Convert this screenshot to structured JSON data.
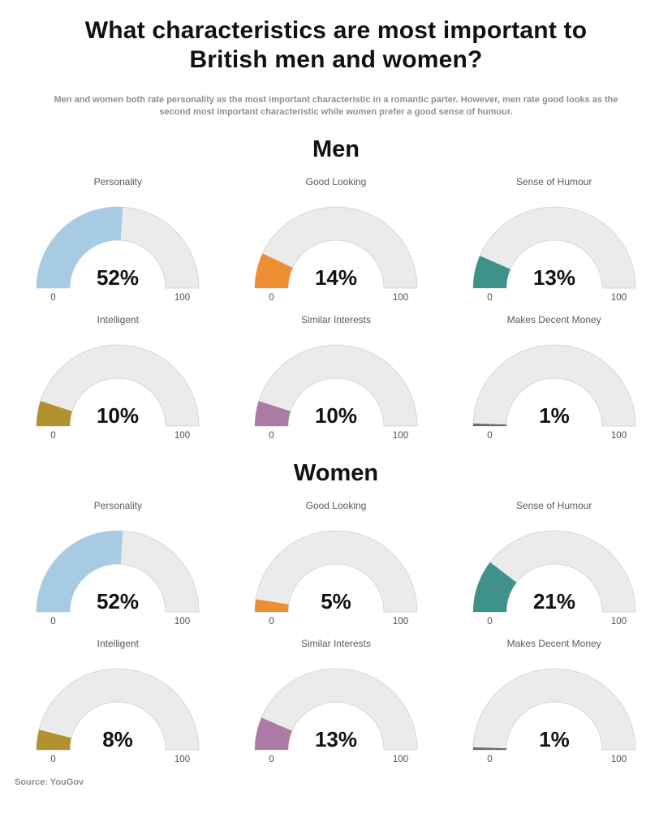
{
  "page": {
    "title": "What characteristics are most important to British men and women?",
    "subtitle": "Men and women both rate personality as the most important characteristic in a romantic parter. However, men rate good looks as the second most important characteristic while women prefer a good sense of humour.",
    "source": "Source: YouGov"
  },
  "gauge_axis": {
    "min_label": "0",
    "max_label": "100",
    "min": 0,
    "max": 100
  },
  "gauge_style": {
    "track_color": "#ebebeb",
    "track_border_color": "#d7d7d7",
    "value_text_color": "#111111",
    "label_text_color": "#5a5a5a",
    "axis_text_color": "#4d4d4d"
  },
  "chart_data": [
    {
      "type": "gauge",
      "section": "Men",
      "unit": "%",
      "axis": {
        "min": 0,
        "max": 100
      },
      "grid_columns": 3,
      "gauges": [
        {
          "label": "Personality",
          "value": 52,
          "display": "52%",
          "color": "#a6cbe3"
        },
        {
          "label": "Good Looking",
          "value": 14,
          "display": "14%",
          "color": "#ee8e33"
        },
        {
          "label": "Sense of Humour",
          "value": 13,
          "display": "13%",
          "color": "#3f9289"
        },
        {
          "label": "Intelligent",
          "value": 10,
          "display": "10%",
          "color": "#b2912f"
        },
        {
          "label": "Similar Interests",
          "value": 10,
          "display": "10%",
          "color": "#ad7aa5"
        },
        {
          "label": "Makes Decent Money",
          "value": 1,
          "display": "1%",
          "color": "#6e6a66"
        }
      ]
    },
    {
      "type": "gauge",
      "section": "Women",
      "unit": "%",
      "axis": {
        "min": 0,
        "max": 100
      },
      "grid_columns": 3,
      "gauges": [
        {
          "label": "Personality",
          "value": 52,
          "display": "52%",
          "color": "#a6cbe3"
        },
        {
          "label": "Good Looking",
          "value": 5,
          "display": "5%",
          "color": "#ee8e33"
        },
        {
          "label": "Sense of Humour",
          "value": 21,
          "display": "21%",
          "color": "#3f9289"
        },
        {
          "label": "Intelligent",
          "value": 8,
          "display": "8%",
          "color": "#b2912f"
        },
        {
          "label": "Similar Interests",
          "value": 13,
          "display": "13%",
          "color": "#ad7aa5"
        },
        {
          "label": "Makes Decent Money",
          "value": 1,
          "display": "1%",
          "color": "#6e6a66"
        }
      ]
    }
  ]
}
